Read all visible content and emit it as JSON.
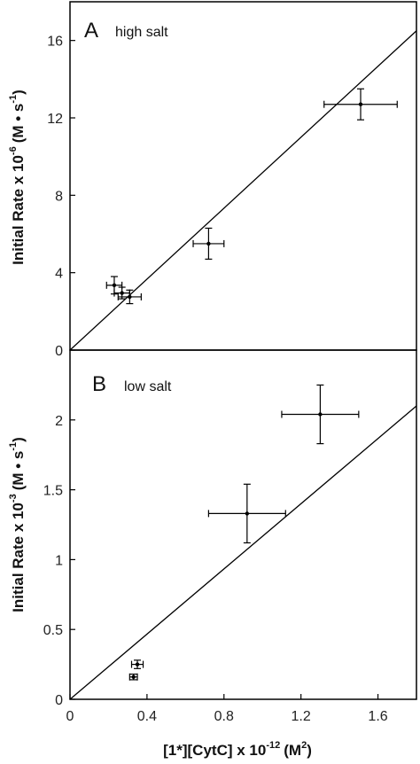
{
  "chart_data": [
    {
      "type": "scatter",
      "panel": "A",
      "annotation": "high salt",
      "ylabel": "Initial Rate x 10",
      "ylabel_exponent": "-6",
      "ylabel_units": "(M • s",
      "ylabel_units_exponent": "-1",
      "xlim": [
        0,
        1.8
      ],
      "ylim": [
        0,
        18
      ],
      "yticks": [
        "0",
        "4",
        "8",
        "12",
        "16"
      ],
      "ytick_values": [
        0,
        4,
        8,
        12,
        16
      ],
      "grid": false,
      "points": [
        {
          "x": 0.23,
          "y": 3.35,
          "xerr": 0.04,
          "yerr": 0.45
        },
        {
          "x": 0.27,
          "y": 2.95,
          "xerr": 0.04,
          "yerr": 0.3
        },
        {
          "x": 0.31,
          "y": 2.75,
          "xerr": 0.06,
          "yerr": 0.35
        },
        {
          "x": 0.72,
          "y": 5.5,
          "xerr": 0.08,
          "yerr": 0.8
        },
        {
          "x": 1.51,
          "y": 12.7,
          "xerr": 0.19,
          "yerr": 0.8
        }
      ],
      "fit_line": {
        "x": [
          0,
          1.8
        ],
        "y": [
          0,
          16.5
        ]
      }
    },
    {
      "type": "scatter",
      "panel": "B",
      "annotation": "low salt",
      "ylabel": "Initial Rate x 10",
      "ylabel_exponent": "-3",
      "ylabel_units": "(M • s",
      "ylabel_units_exponent": "-1",
      "xlabel": "[1*][CytC] x 10",
      "xlabel_exponent": "-12",
      "xlabel_units": "(M",
      "xlabel_units_exponent": "2",
      "xlim": [
        0,
        1.8
      ],
      "ylim": [
        0,
        2.5
      ],
      "xticks": [
        "0",
        "0.4",
        "0.8",
        "1.2",
        "1.6"
      ],
      "xtick_values": [
        0,
        0.4,
        0.8,
        1.2,
        1.6
      ],
      "yticks": [
        "0",
        "0.5",
        "1",
        "1.5",
        "2"
      ],
      "ytick_values": [
        0,
        0.5,
        1,
        1.5,
        2
      ],
      "grid": false,
      "points": [
        {
          "x": 0.33,
          "y": 0.16,
          "xerr": 0.02,
          "yerr": 0.02
        },
        {
          "x": 0.35,
          "y": 0.25,
          "xerr": 0.03,
          "yerr": 0.03
        },
        {
          "x": 0.92,
          "y": 1.33,
          "xerr": 0.2,
          "yerr": 0.21
        },
        {
          "x": 1.3,
          "y": 2.04,
          "xerr": 0.2,
          "yerr": 0.21
        }
      ],
      "fit_line": {
        "x": [
          0,
          1.8
        ],
        "y": [
          0,
          2.1
        ]
      }
    }
  ]
}
